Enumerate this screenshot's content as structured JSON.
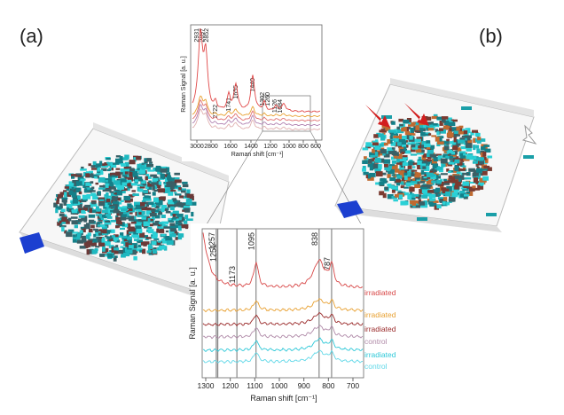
{
  "panel_labels": [
    "(a)",
    "(b)"
  ],
  "top_spectrum": {
    "y_label": "Raman Signal [a. u.]",
    "x_label": "Raman shift [cm⁻¹]",
    "x_ticks": [
      3000,
      2800,
      1600,
      1400,
      1200,
      1000,
      800,
      600
    ],
    "peaks": [
      2931,
      2897,
      2852,
      2722,
      1741,
      1655,
      1440,
      1302,
      1260,
      1126,
      1084
    ]
  },
  "bottom_spectrum": {
    "y_label": "Raman Signal [a. u.]",
    "x_label": "Raman shift [cm⁻¹]",
    "x_ticks": [
      1300,
      1200,
      1100,
      1000,
      900,
      800,
      700
    ],
    "peaks": [
      1257,
      1251,
      1173,
      1095,
      838,
      787
    ],
    "traces": [
      "irradiated",
      "irradiated",
      "irradiated",
      "control",
      "irradiated",
      "control"
    ]
  }
}
